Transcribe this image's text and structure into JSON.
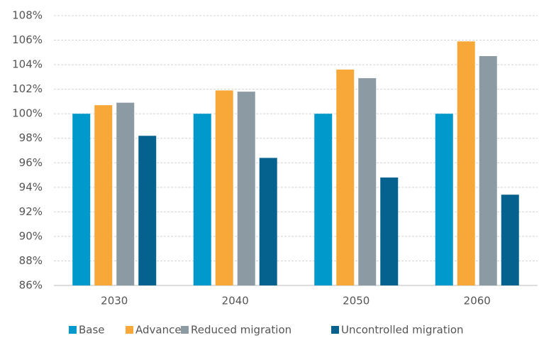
{
  "chart_data": {
    "type": "bar",
    "categories": [
      "2030",
      "2040",
      "2050",
      "2060"
    ],
    "series": [
      {
        "name": "Base",
        "color": "#0099cc",
        "values": [
          100,
          100,
          100,
          100
        ]
      },
      {
        "name": "Advance",
        "color": "#f7a839",
        "values": [
          100.7,
          101.9,
          103.6,
          105.9
        ]
      },
      {
        "name": "Reduced migration",
        "color": "#8c9aa3",
        "values": [
          100.9,
          101.8,
          102.9,
          104.7
        ]
      },
      {
        "name": "Uncontrolled migration",
        "color": "#05628f",
        "values": [
          98.2,
          96.4,
          94.8,
          93.4
        ]
      }
    ],
    "ylim": [
      86,
      108
    ],
    "yticks": [
      {
        "value": 86,
        "label": "86%"
      },
      {
        "value": 88,
        "label": "88%"
      },
      {
        "value": 90,
        "label": "90%"
      },
      {
        "value": 92,
        "label": "92%"
      },
      {
        "value": 94,
        "label": "94%"
      },
      {
        "value": 96,
        "label": "96%"
      },
      {
        "value": 98,
        "label": "98%"
      },
      {
        "value": 100,
        "label": "100%"
      },
      {
        "value": 102,
        "label": "102%"
      },
      {
        "value": 104,
        "label": "104%"
      },
      {
        "value": 106,
        "label": "106%"
      },
      {
        "value": 108,
        "label": "108%"
      }
    ],
    "grid": true,
    "legend": "bottom"
  }
}
